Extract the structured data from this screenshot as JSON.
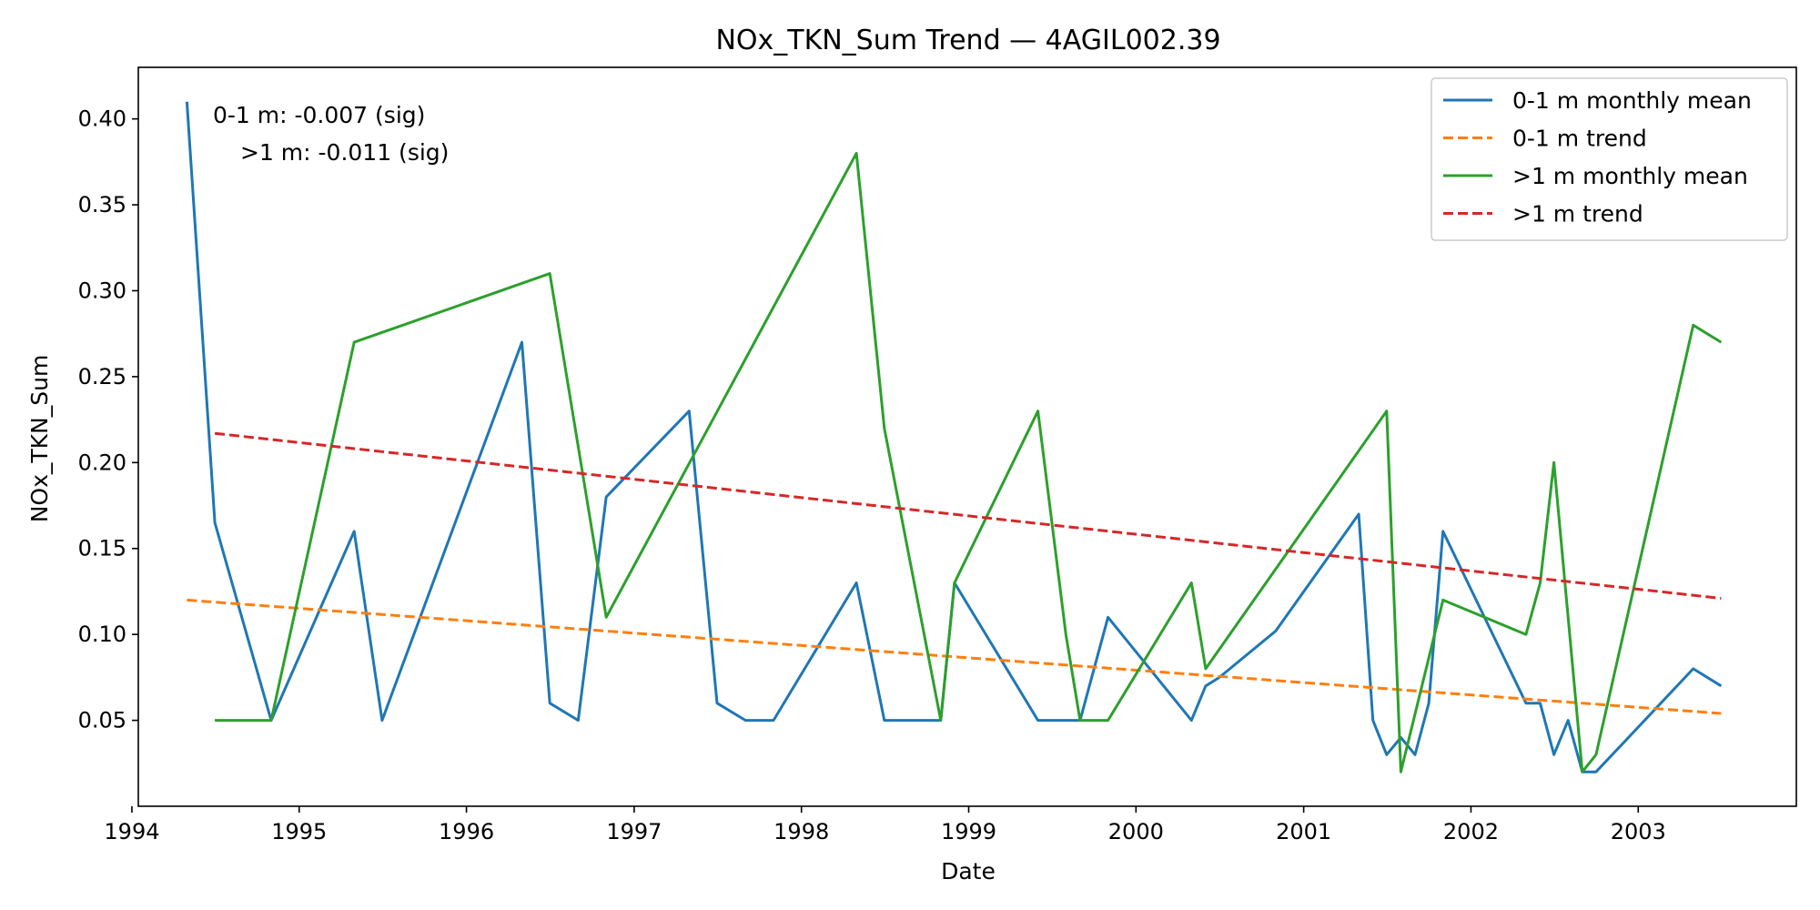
{
  "chart_data": {
    "type": "line",
    "title": "NOx_TKN_Sum Trend — 4AGIL002.39",
    "xlabel": "Date",
    "ylabel": "NOx_TKN_Sum",
    "xlim": [
      "1994-01-15",
      "2003-12-12"
    ],
    "ylim": [
      0.0,
      0.43
    ],
    "x_ticks": [
      "1994",
      "1995",
      "1996",
      "1997",
      "1998",
      "1999",
      "2000",
      "2001",
      "2002",
      "2003"
    ],
    "y_ticks": [
      "0.05",
      "0.10",
      "0.15",
      "0.20",
      "0.25",
      "0.30",
      "0.35",
      "0.40"
    ],
    "grid": false,
    "legend_position": "top-right",
    "annotations": [
      "0-1 m: -0.007 (sig)",
      ">1 m: -0.011 (sig)"
    ],
    "series": [
      {
        "name": "0-1 m monthly mean",
        "style": "solid",
        "color": "#1f77b4",
        "points": [
          [
            "1994-05-01",
            0.41
          ],
          [
            "1994-07-01",
            0.165
          ],
          [
            "1994-11-01",
            0.05
          ],
          [
            "1995-05-01",
            0.16
          ],
          [
            "1995-07-01",
            0.05
          ],
          [
            "1996-05-01",
            0.27
          ],
          [
            "1996-07-01",
            0.06
          ],
          [
            "1996-09-01",
            0.05
          ],
          [
            "1996-11-01",
            0.18
          ],
          [
            "1997-05-01",
            0.23
          ],
          [
            "1997-07-01",
            0.06
          ],
          [
            "1997-09-01",
            0.05
          ],
          [
            "1997-11-01",
            0.05
          ],
          [
            "1998-05-01",
            0.13
          ],
          [
            "1998-07-01",
            0.05
          ],
          [
            "1998-11-01",
            0.05
          ],
          [
            "1998-12-01",
            0.13
          ],
          [
            "1999-06-01",
            0.05
          ],
          [
            "1999-09-01",
            0.05
          ],
          [
            "1999-11-01",
            0.11
          ],
          [
            "2000-05-01",
            0.05
          ],
          [
            "2000-06-01",
            0.07
          ],
          [
            "2000-07-01",
            0.075
          ],
          [
            "2000-11-01",
            0.102
          ],
          [
            "2001-05-01",
            0.17
          ],
          [
            "2001-06-01",
            0.05
          ],
          [
            "2001-07-01",
            0.03
          ],
          [
            "2001-08-01",
            0.04
          ],
          [
            "2001-09-01",
            0.03
          ],
          [
            "2001-10-01",
            0.06
          ],
          [
            "2001-11-01",
            0.16
          ],
          [
            "2002-05-01",
            0.06
          ],
          [
            "2002-06-01",
            0.06
          ],
          [
            "2002-07-01",
            0.03
          ],
          [
            "2002-08-01",
            0.05
          ],
          [
            "2002-09-01",
            0.02
          ],
          [
            "2002-10-01",
            0.02
          ],
          [
            "2003-05-01",
            0.08
          ],
          [
            "2003-07-01",
            0.07
          ]
        ]
      },
      {
        "name": "0-1 m trend",
        "style": "dashed",
        "color": "#ff7f0e",
        "points": [
          [
            "1994-05-01",
            0.12
          ],
          [
            "2003-07-01",
            0.054
          ]
        ]
      },
      {
        "name": ">1 m monthly mean",
        "style": "solid",
        "color": "#2ca02c",
        "points": [
          [
            "1994-07-01",
            0.05
          ],
          [
            "1994-11-01",
            0.05
          ],
          [
            "1995-05-01",
            0.27
          ],
          [
            "1996-07-01",
            0.31
          ],
          [
            "1996-11-01",
            0.11
          ],
          [
            "1998-05-01",
            0.38
          ],
          [
            "1998-07-01",
            0.22
          ],
          [
            "1998-11-01",
            0.05
          ],
          [
            "1998-12-01",
            0.13
          ],
          [
            "1999-06-01",
            0.23
          ],
          [
            "1999-08-01",
            0.1
          ],
          [
            "1999-09-01",
            0.05
          ],
          [
            "1999-11-01",
            0.05
          ],
          [
            "2000-05-01",
            0.13
          ],
          [
            "2000-06-01",
            0.08
          ],
          [
            "2001-07-01",
            0.23
          ],
          [
            "2001-08-01",
            0.02
          ],
          [
            "2001-11-01",
            0.12
          ],
          [
            "2002-05-01",
            0.1
          ],
          [
            "2002-06-01",
            0.13
          ],
          [
            "2002-07-01",
            0.2
          ],
          [
            "2002-09-01",
            0.02
          ],
          [
            "2002-10-01",
            0.03
          ],
          [
            "2003-05-01",
            0.28
          ],
          [
            "2003-07-01",
            0.27
          ]
        ]
      },
      {
        "name": ">1 m trend",
        "style": "dashed",
        "color": "#d62728",
        "points": [
          [
            "1994-07-01",
            0.217
          ],
          [
            "2003-07-01",
            0.121
          ]
        ]
      }
    ]
  }
}
